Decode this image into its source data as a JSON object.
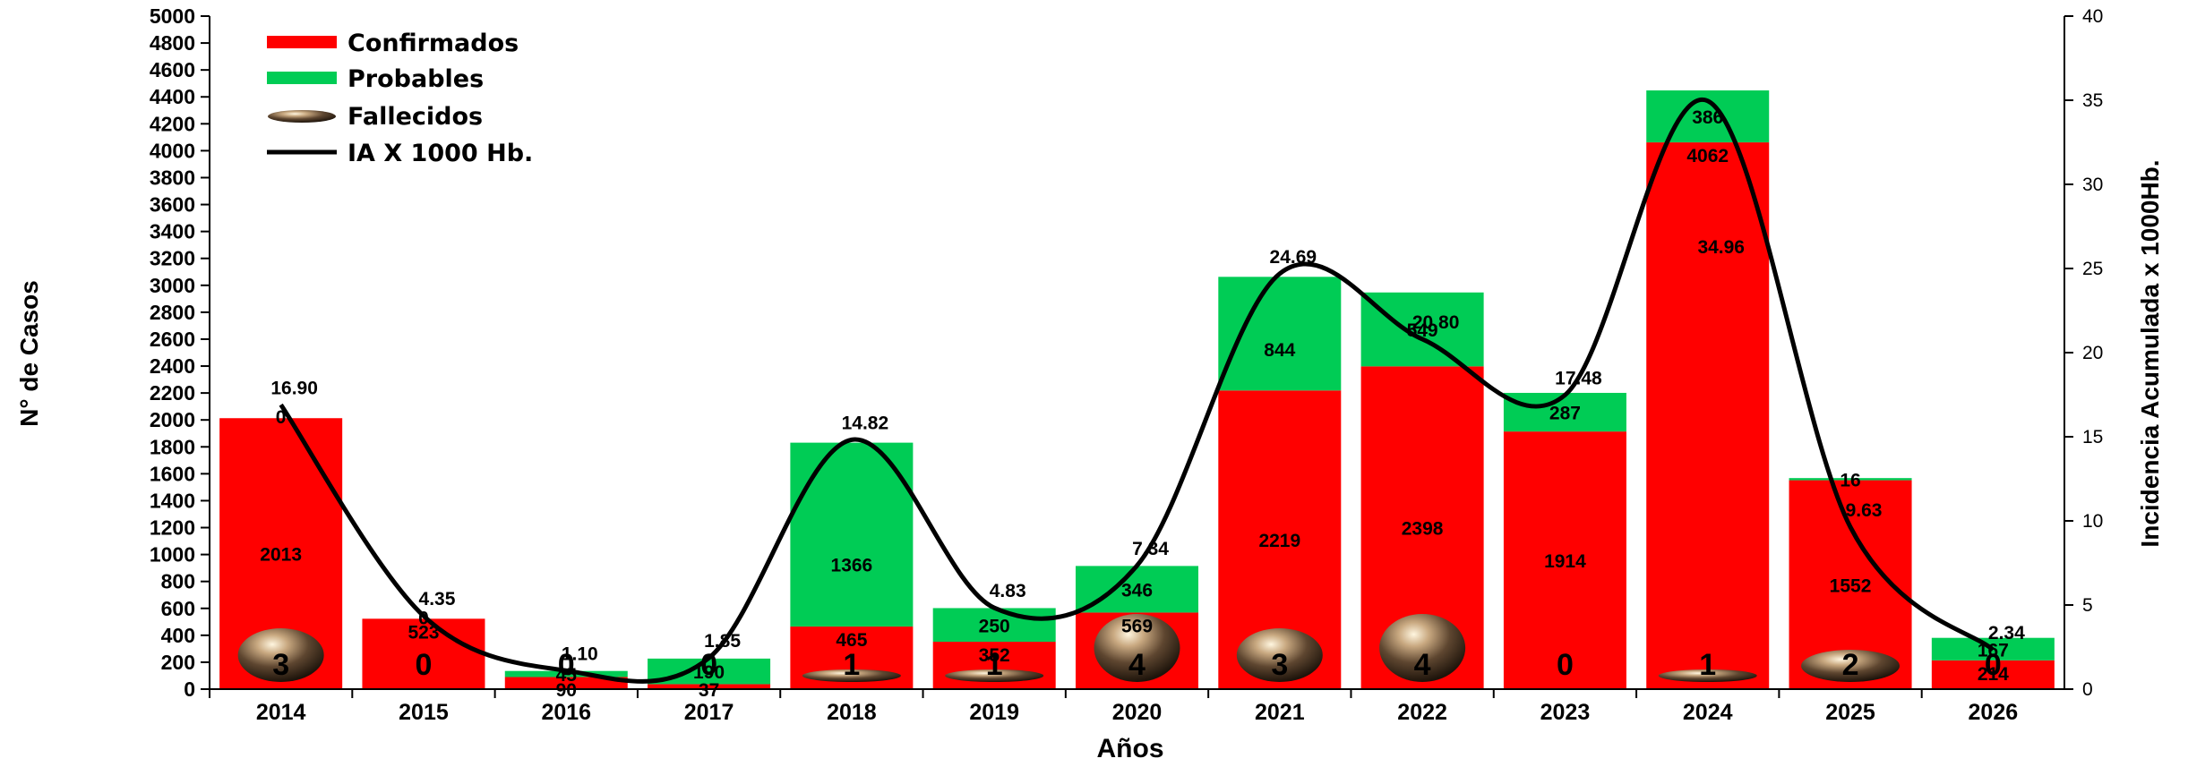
{
  "chart_data": {
    "type": "bar",
    "stacked": true,
    "categories": [
      "2014",
      "2015",
      "2016",
      "2017",
      "2018",
      "2019",
      "2020",
      "2021",
      "2022",
      "2023",
      "2024",
      "2025",
      "2026"
    ],
    "series": [
      {
        "name": "Confirmados",
        "color": "#ff0000",
        "values": [
          2013,
          523,
          90,
          37,
          465,
          352,
          569,
          2219,
          2398,
          1914,
          4062,
          1552,
          214
        ]
      },
      {
        "name": "Probables",
        "color": "#00cc55",
        "values": [
          0,
          0,
          45,
          190,
          1366,
          250,
          346,
          844,
          549,
          287,
          386,
          16,
          167
        ]
      }
    ],
    "fallecidos": {
      "name": "Fallecidos",
      "values": [
        3,
        0,
        0,
        0,
        1,
        1,
        4,
        3,
        4,
        0,
        1,
        2,
        0
      ]
    },
    "line": {
      "name": "IA X 1000 Hb.",
      "color": "#000000",
      "values": [
        16.9,
        4.35,
        1.1,
        1.85,
        14.82,
        4.83,
        7.34,
        24.69,
        20.8,
        17.48,
        34.96,
        9.63,
        2.34
      ]
    },
    "probables_labels": [
      "0",
      "0",
      "45",
      "190",
      "1366",
      "250",
      "346",
      "844",
      "549",
      "287",
      "386",
      "16",
      "167"
    ],
    "line_labels": [
      "16.90",
      "4.35",
      "1.10",
      "1.85",
      "14.82",
      "4.83",
      "7.34",
      "24.69",
      "20.80",
      "17.48",
      "34.96",
      "9.63",
      "2.34"
    ],
    "xlabel": "Años",
    "ylabel": "N° de Casos",
    "y2label": "Incidencia Acumulada x 1000Hb.",
    "ylim": [
      0,
      5000
    ],
    "ystep": 200,
    "y2lim": [
      0,
      40
    ],
    "y2step": 5,
    "grid": false,
    "legend": "top-left"
  }
}
